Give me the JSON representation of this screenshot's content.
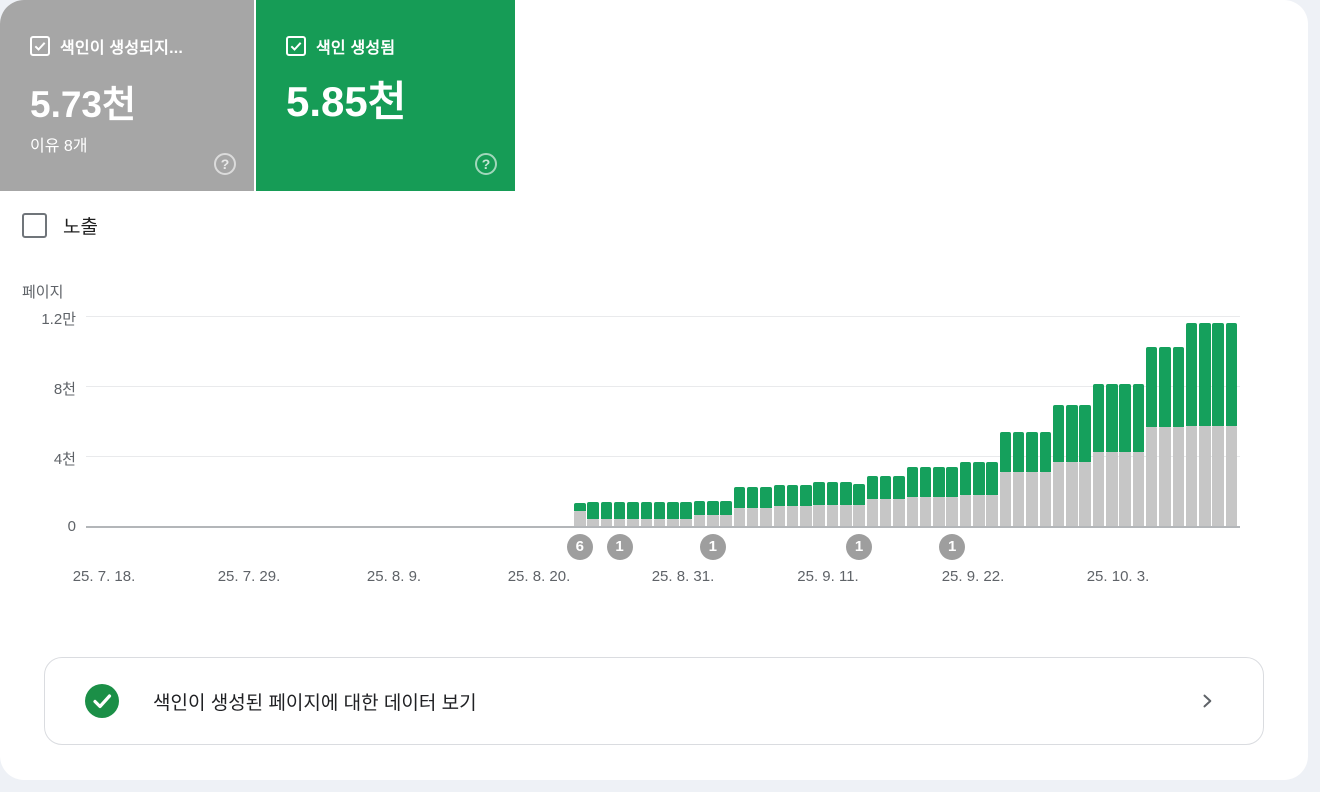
{
  "cards": {
    "not_indexed": {
      "label": "색인이 생성되지...",
      "value": "5.73천",
      "sub": "이유 8개",
      "help": "?",
      "color": "#a6a6a6"
    },
    "indexed": {
      "label": "색인 생성됨",
      "value": "5.85천",
      "help": "?",
      "color": "#169c56"
    }
  },
  "impressions_toggle": {
    "label": "노출",
    "checked": false
  },
  "chart_data": {
    "type": "bar",
    "stacked": true,
    "ylabel": "페이지",
    "ylim": [
      0,
      12000
    ],
    "grid": true,
    "y_ticks": [
      {
        "label": "0",
        "value": 0
      },
      {
        "label": "4천",
        "value": 4000
      },
      {
        "label": "8천",
        "value": 8000
      },
      {
        "label": "1.2만",
        "value": 12000
      }
    ],
    "x_tick_labels": [
      "25. 7. 18.",
      "25. 7. 29.",
      "25. 8. 9.",
      "25. 8. 20.",
      "25. 8. 31.",
      "25. 9. 11.",
      "25. 9. 22.",
      "25. 10. 3."
    ],
    "series": [
      {
        "name": "색인이 생성되지 않음",
        "color": "#c6c6c6",
        "values": [
          860,
          400,
          400,
          400,
          400,
          400,
          400,
          400,
          400,
          630,
          630,
          630,
          1030,
          1030,
          1030,
          1140,
          1140,
          1140,
          1200,
          1200,
          1200,
          1200,
          1540,
          1540,
          1540,
          1660,
          1660,
          1660,
          1660,
          1770,
          1770,
          1770,
          3090,
          3090,
          3090,
          3090,
          3660,
          3660,
          3660,
          4230,
          4230,
          4230,
          4230,
          5660,
          5660,
          5660,
          5730,
          5730,
          5730,
          5730
        ]
      },
      {
        "name": "색인 생성됨",
        "color": "#15a05c",
        "values": [
          460,
          970,
          970,
          970,
          970,
          970,
          970,
          970,
          970,
          800,
          800,
          800,
          1200,
          1200,
          1200,
          1200,
          1200,
          1200,
          1310,
          1310,
          1310,
          1200,
          1310,
          1310,
          1310,
          1710,
          1710,
          1710,
          1710,
          1890,
          1890,
          1890,
          2290,
          2290,
          2290,
          2290,
          3260,
          3260,
          3260,
          3890,
          3890,
          3890,
          3890,
          4570,
          4570,
          4570,
          5850,
          5850,
          5850,
          5850
        ]
      }
    ],
    "annotations": [
      {
        "bar_index": 0,
        "label": "6"
      },
      {
        "bar_index": 3,
        "label": "1"
      },
      {
        "bar_index": 10,
        "label": "1"
      },
      {
        "bar_index": 21,
        "label": "1"
      },
      {
        "bar_index": 28,
        "label": "1"
      }
    ]
  },
  "footer_card": {
    "label": "색인이 생성된 페이지에 대한 데이터 보기"
  }
}
